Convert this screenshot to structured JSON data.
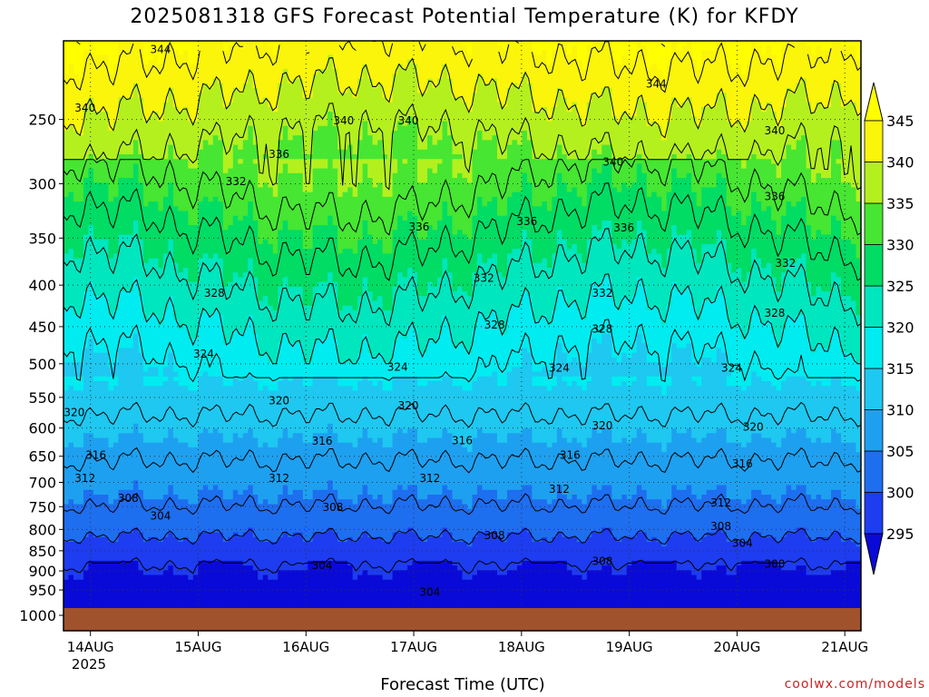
{
  "title": "2025081318 GFS Forecast Potential Temperature (K) for KFDY",
  "chart_data": {
    "type": "contour",
    "title": "2025081318 GFS Forecast Potential Temperature (K) for KFDY",
    "xlabel": "Forecast Time (UTC)",
    "ylabel": "",
    "x_ticks": [
      "14AUG",
      "15AUG",
      "16AUG",
      "17AUG",
      "18AUG",
      "19AUG",
      "20AUG",
      "21AUG"
    ],
    "x_year": "2025",
    "x_range_days": [
      0,
      7.4
    ],
    "y_ticks": [
      250,
      300,
      350,
      400,
      450,
      500,
      550,
      600,
      650,
      700,
      750,
      800,
      850,
      900,
      950,
      1000
    ],
    "y_range_hpa": [
      200,
      1000
    ],
    "y_reversed": true,
    "grid": true,
    "colorbar": {
      "levels": [
        295,
        300,
        305,
        310,
        315,
        320,
        325,
        330,
        335,
        340,
        345
      ],
      "colors": [
        "#0a0ad8",
        "#1e3cf0",
        "#1e6ef0",
        "#1ea0f0",
        "#1ec8f0",
        "#00ecf0",
        "#00e6be",
        "#00dc64",
        "#46e632",
        "#b4f01e",
        "#faf50a",
        "#ffff00"
      ]
    },
    "contour_interval": 4,
    "contour_labels": [
      {
        "value": 344,
        "day": 0.9,
        "hpa": 205
      },
      {
        "value": 344,
        "day": 5.5,
        "hpa": 226
      },
      {
        "value": 340,
        "day": 0.2,
        "hpa": 242
      },
      {
        "value": 340,
        "day": 2.6,
        "hpa": 251
      },
      {
        "value": 340,
        "day": 3.2,
        "hpa": 251
      },
      {
        "value": 340,
        "day": 5.1,
        "hpa": 282
      },
      {
        "value": 340,
        "day": 6.6,
        "hpa": 258
      },
      {
        "value": 336,
        "day": 2.0,
        "hpa": 276
      },
      {
        "value": 336,
        "day": 3.3,
        "hpa": 339
      },
      {
        "value": 336,
        "day": 4.3,
        "hpa": 334
      },
      {
        "value": 336,
        "day": 5.2,
        "hpa": 340
      },
      {
        "value": 336,
        "day": 6.6,
        "hpa": 311
      },
      {
        "value": 332,
        "day": 1.6,
        "hpa": 298
      },
      {
        "value": 332,
        "day": 3.9,
        "hpa": 392
      },
      {
        "value": 332,
        "day": 5.0,
        "hpa": 409
      },
      {
        "value": 332,
        "day": 6.7,
        "hpa": 376
      },
      {
        "value": 328,
        "day": 1.4,
        "hpa": 409
      },
      {
        "value": 328,
        "day": 4.0,
        "hpa": 448
      },
      {
        "value": 328,
        "day": 5.0,
        "hpa": 453
      },
      {
        "value": 328,
        "day": 6.6,
        "hpa": 433
      },
      {
        "value": 324,
        "day": 1.3,
        "hpa": 486
      },
      {
        "value": 324,
        "day": 3.1,
        "hpa": 505
      },
      {
        "value": 324,
        "day": 4.6,
        "hpa": 506
      },
      {
        "value": 324,
        "day": 6.2,
        "hpa": 506
      },
      {
        "value": 320,
        "day": 0.1,
        "hpa": 574
      },
      {
        "value": 320,
        "day": 2.0,
        "hpa": 555
      },
      {
        "value": 320,
        "day": 3.2,
        "hpa": 563
      },
      {
        "value": 320,
        "day": 5.0,
        "hpa": 596
      },
      {
        "value": 320,
        "day": 6.4,
        "hpa": 598
      },
      {
        "value": 316,
        "day": 0.3,
        "hpa": 648
      },
      {
        "value": 316,
        "day": 2.4,
        "hpa": 623
      },
      {
        "value": 316,
        "day": 3.7,
        "hpa": 622
      },
      {
        "value": 316,
        "day": 4.7,
        "hpa": 648
      },
      {
        "value": 316,
        "day": 6.3,
        "hpa": 664
      },
      {
        "value": 312,
        "day": 0.2,
        "hpa": 692
      },
      {
        "value": 312,
        "day": 2.0,
        "hpa": 692
      },
      {
        "value": 312,
        "day": 3.4,
        "hpa": 692
      },
      {
        "value": 312,
        "day": 4.6,
        "hpa": 714
      },
      {
        "value": 312,
        "day": 6.1,
        "hpa": 742
      },
      {
        "value": 308,
        "day": 0.6,
        "hpa": 732
      },
      {
        "value": 308,
        "day": 2.5,
        "hpa": 751
      },
      {
        "value": 308,
        "day": 4.0,
        "hpa": 814
      },
      {
        "value": 308,
        "day": 6.1,
        "hpa": 793
      },
      {
        "value": 304,
        "day": 0.9,
        "hpa": 770
      },
      {
        "value": 304,
        "day": 2.4,
        "hpa": 886
      },
      {
        "value": 304,
        "day": 3.4,
        "hpa": 956
      },
      {
        "value": 304,
        "day": 6.3,
        "hpa": 832
      },
      {
        "value": 308,
        "day": 5.0,
        "hpa": 876
      },
      {
        "value": 300,
        "day": 6.6,
        "hpa": 883
      }
    ]
  },
  "credit": "coolwx.com/models"
}
